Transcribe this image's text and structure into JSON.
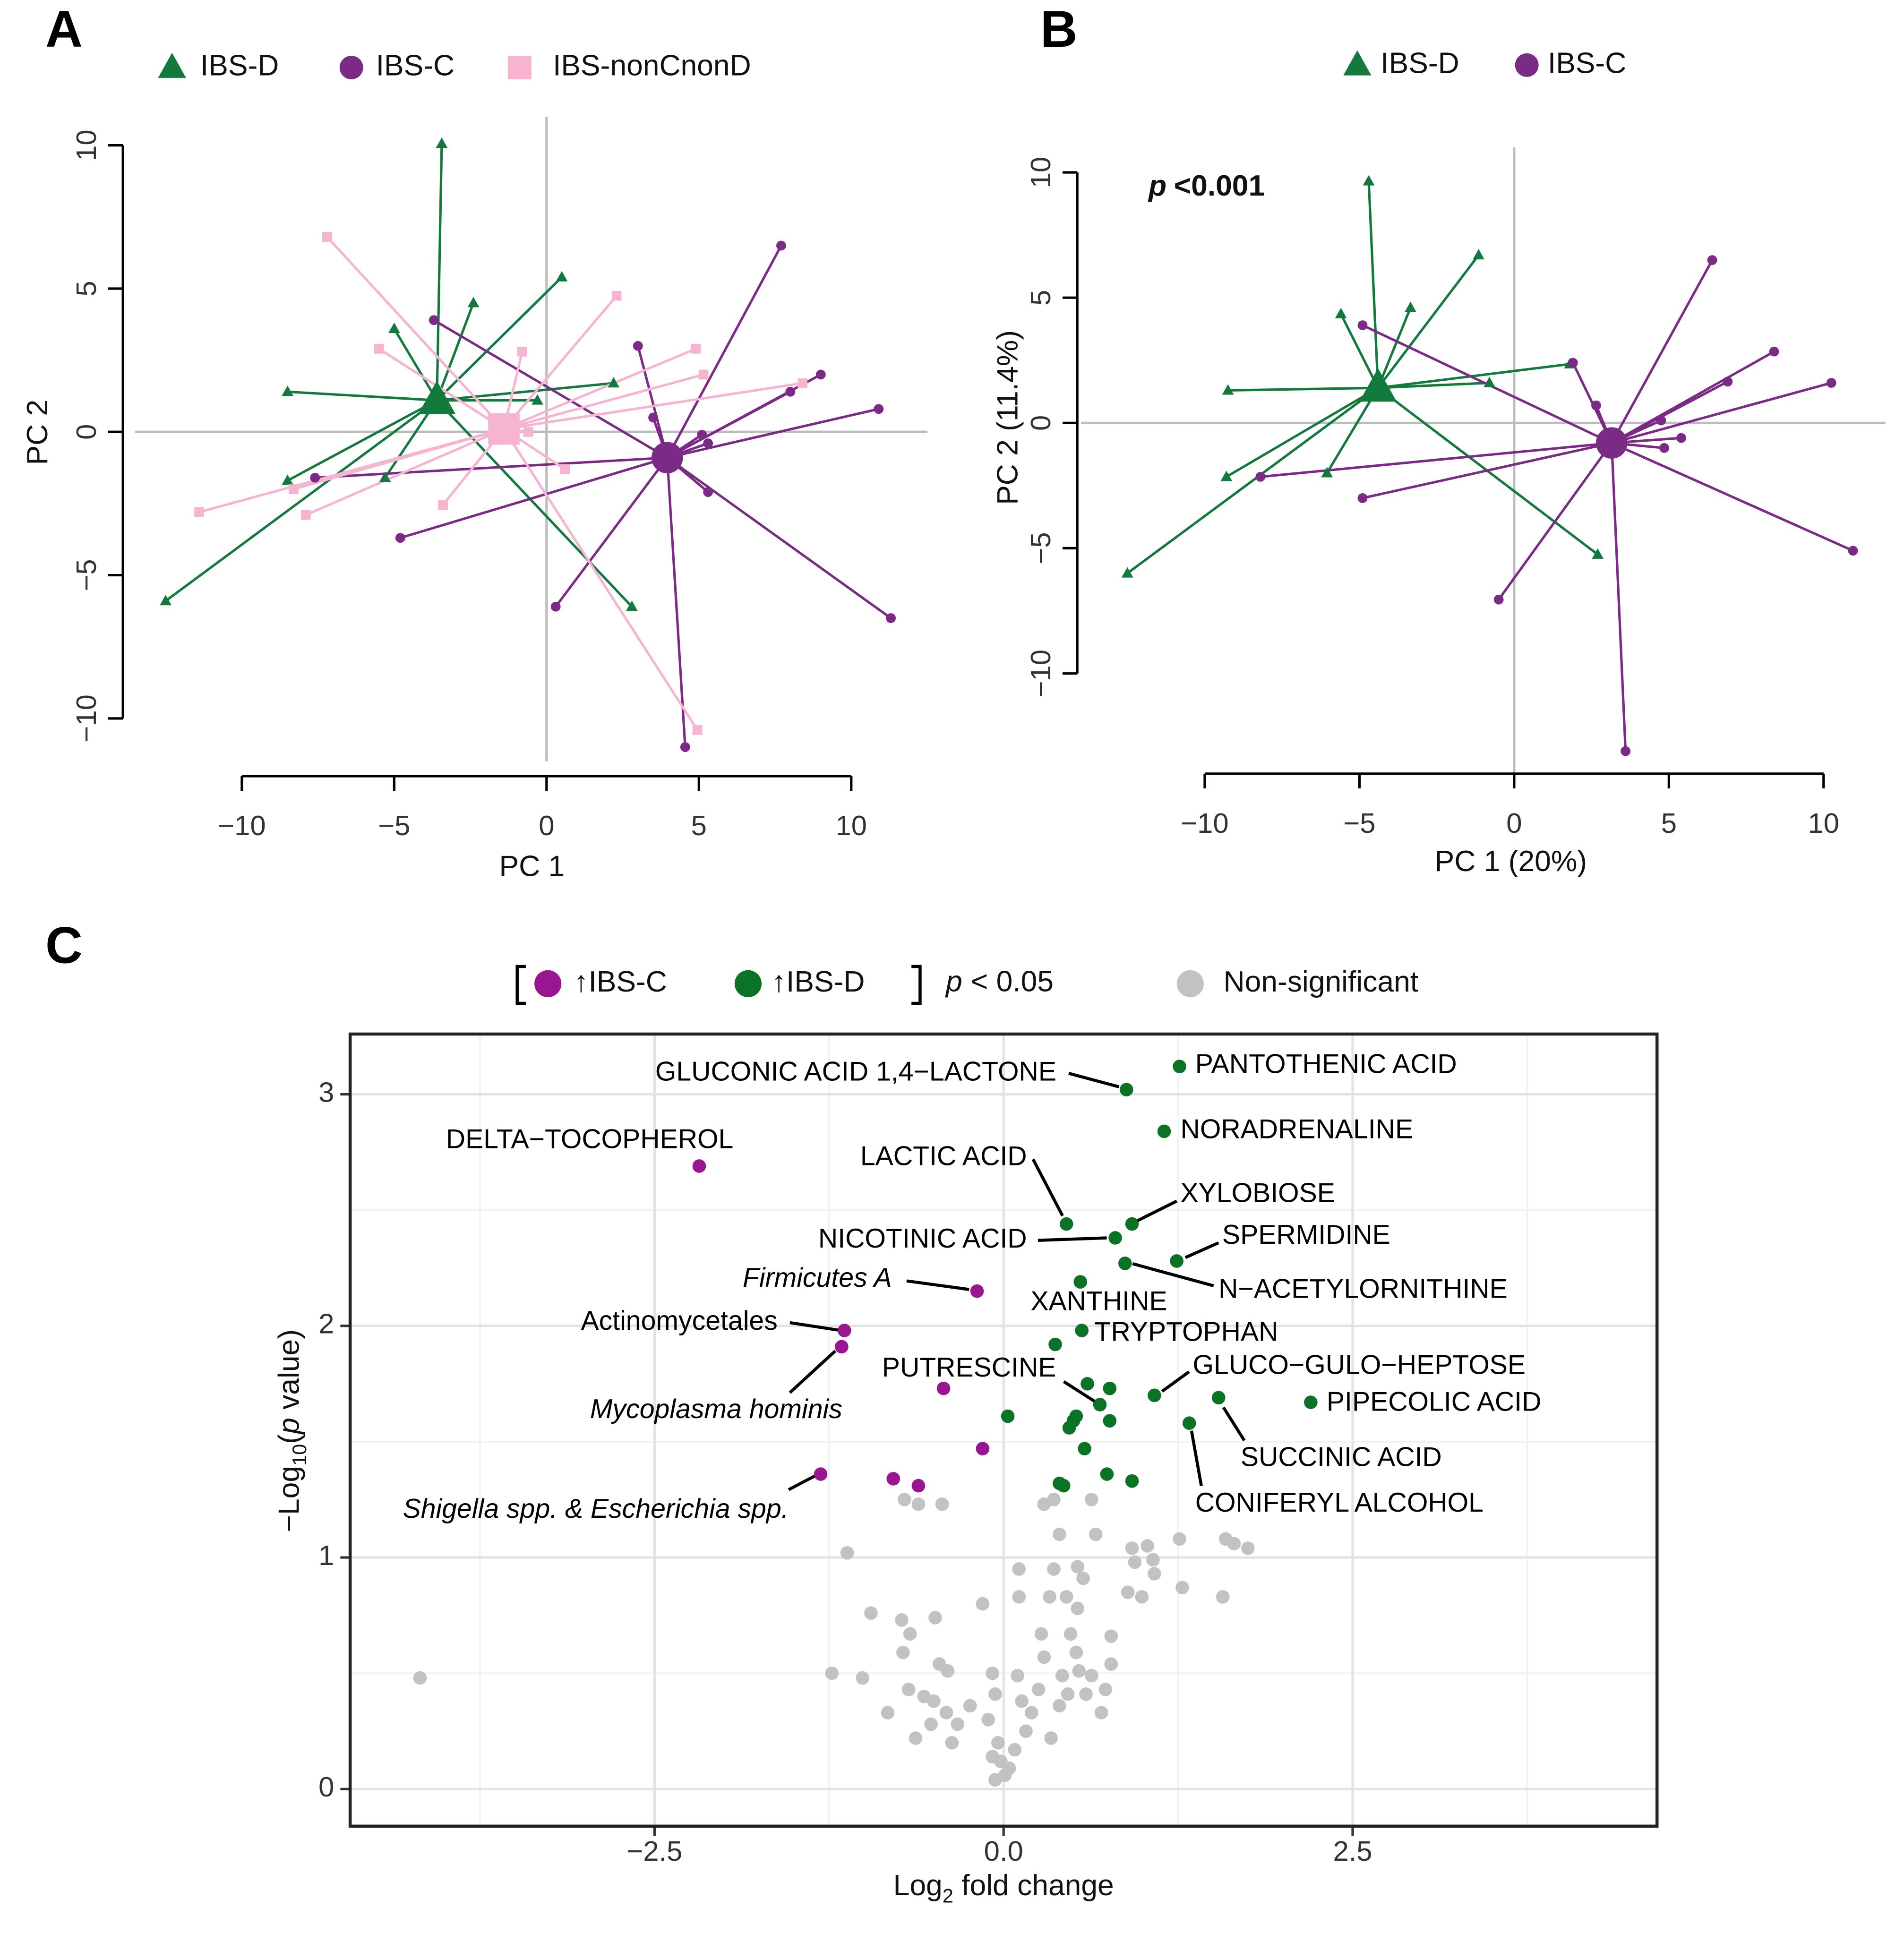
{
  "chart_data": [
    {
      "type": "pca",
      "panel": "A",
      "xlabel": "PC 1",
      "ylabel": "PC 2",
      "xlim": [
        -13.5,
        12.5
      ],
      "ylim": [
        -11.5,
        11
      ],
      "xticks": [
        {
          "value": -10,
          "label": "−10"
        },
        {
          "value": -5,
          "label": "−5"
        },
        0,
        5,
        10
      ],
      "yticks": [
        {
          "value": -10,
          "label": "−10"
        },
        {
          "value": -5,
          "label": "−5"
        },
        0,
        5,
        10
      ],
      "series": [
        {
          "name": "IBS-D",
          "color": "#137a3e",
          "marker": "triangle",
          "centroid": {
            "x": -3.6,
            "y": 1.1
          },
          "x": [
            -3.44,
            0.5,
            -2.4,
            -5.0,
            -8.5,
            2.2,
            -0.3,
            -8.5,
            -5.3,
            -12.5,
            2.8
          ],
          "y": [
            10.06,
            5.4,
            4.5,
            3.6,
            1.4,
            1.7,
            1.1,
            -1.7,
            -1.6,
            -5.9,
            -6.1
          ]
        },
        {
          "name": "IBS-C",
          "color": "#7b2a85",
          "marker": "circle",
          "centroid": {
            "x": 3.96,
            "y": -0.9
          },
          "x": [
            7.7,
            3.0,
            -3.7,
            9.0,
            8.0,
            10.9,
            5.1,
            5.3,
            -7.6,
            5.3,
            -4.8,
            0.3,
            11.3,
            4.55,
            3.5
          ],
          "y": [
            6.5,
            3.0,
            3.9,
            2.0,
            1.4,
            0.8,
            -0.1,
            -0.4,
            -1.6,
            -2.1,
            -3.7,
            -6.1,
            -6.5,
            -11.0,
            0.5
          ]
        },
        {
          "name": "IBS-nonCnonD",
          "color": "#f6b4d0",
          "marker": "square",
          "centroid": {
            "x": -1.4,
            "y": 0.1
          },
          "x": [
            -7.2,
            2.3,
            -5.5,
            4.9,
            -0.8,
            5.15,
            8.4,
            -11.4,
            -7.9,
            -8.3,
            -3.4,
            0.6,
            4.95,
            -0.6
          ],
          "y": [
            6.8,
            4.75,
            2.9,
            2.9,
            2.8,
            2.0,
            1.7,
            -2.8,
            -2.9,
            -2.0,
            -2.55,
            -1.3,
            -10.4,
            0
          ]
        }
      ]
    },
    {
      "type": "pca",
      "panel": "B",
      "xlabel": "PC 1 (20%)",
      "ylabel": "PC 2 (11.4%)",
      "annotation": {
        "symbol": "p",
        "text": "<0.001"
      },
      "xlim": [
        -14,
        12
      ],
      "ylim": [
        -14,
        11
      ],
      "xticks": [
        {
          "value": -10,
          "label": "−10"
        },
        {
          "value": -5,
          "label": "−5"
        },
        0,
        5,
        10
      ],
      "yticks": [
        {
          "value": -10,
          "label": "−10"
        },
        {
          "value": -5,
          "label": "−5"
        },
        0,
        5,
        10
      ],
      "series": [
        {
          "name": "IBS-D",
          "color": "#137a3e",
          "marker": "triangle",
          "centroid": {
            "x": -4.4,
            "y": 1.4
          },
          "x": [
            -4.7,
            -1.15,
            -3.35,
            -5.6,
            -9.25,
            1.8,
            -0.8,
            -9.3,
            -6.05,
            -12.5,
            2.7
          ],
          "y": [
            9.65,
            6.7,
            4.6,
            4.35,
            1.3,
            2.35,
            1.6,
            -2.15,
            -2.0,
            -6.0,
            -5.25
          ]
        },
        {
          "name": "IBS-C",
          "color": "#7b2a85",
          "marker": "circle",
          "centroid": {
            "x": 3.15,
            "y": -0.8
          },
          "x": [
            6.4,
            -4.9,
            1.9,
            2.65,
            8.4,
            6.9,
            10.25,
            4.75,
            5.4,
            4.85,
            -8.2,
            -4.9,
            10.95,
            -0.5,
            3.6
          ],
          "y": [
            6.5,
            3.9,
            2.4,
            0.7,
            2.85,
            1.65,
            1.6,
            0.1,
            -0.6,
            -1.0,
            -2.15,
            -3.0,
            -5.1,
            -7.05,
            -13.1
          ]
        }
      ]
    },
    {
      "type": "volcano",
      "panel": "C",
      "xlabel": [
        "Log",
        "2",
        " fold change"
      ],
      "ylabel": [
        "−Log",
        "10",
        "(",
        "p",
        " value)"
      ],
      "legend_note": {
        "symbol": "p",
        "text": "< 0.05"
      },
      "xlim": [
        -4.68,
        4.68
      ],
      "ylim": [
        -0.16,
        3.26
      ],
      "xticks": [
        {
          "value": -2.5,
          "label": "−2.5"
        },
        {
          "value": 0,
          "label": "0.0"
        },
        2.5
      ],
      "yticks": [
        0,
        1,
        2,
        3
      ],
      "x_minor_grid": [
        -3.75,
        -1.25,
        1.25,
        3.75
      ],
      "y_minor_grid": [
        0.5,
        1.5,
        2.5
      ],
      "grid": true,
      "series": [
        {
          "name": "↑IBS-C",
          "color": "#9a1690",
          "x": [
            -2.18,
            -0.19,
            -1.14,
            -1.16,
            -1.31,
            -0.43,
            -0.15,
            -0.79,
            -0.61
          ],
          "y": [
            2.69,
            2.15,
            1.98,
            1.91,
            1.36,
            1.73,
            1.47,
            1.34,
            1.31
          ],
          "labels": [
            "DELTA−TOCOPHEROL",
            "Firmicutes A",
            "Actinomycetales",
            "Mycoplasma hominis",
            "Shigella spp. & Escherichia spp.",
            null,
            null,
            null,
            null
          ]
        },
        {
          "name": "↑IBS-D",
          "color": "#0b7325",
          "x": [
            0.88,
            1.26,
            1.15,
            0.45,
            0.92,
            0.8,
            1.24,
            0.87,
            0.55,
            0.56,
            0.37,
            1.08,
            2.2,
            1.54,
            1.33,
            0.69,
            0.6,
            0.76,
            0.03,
            0.52,
            0.47,
            0.76,
            0.58,
            0.74,
            0.92,
            0.4,
            0.43,
            0.5
          ],
          "y": [
            3.02,
            3.12,
            2.84,
            2.44,
            2.44,
            2.38,
            2.28,
            2.27,
            2.19,
            1.98,
            1.92,
            1.7,
            1.67,
            1.69,
            1.58,
            1.66,
            1.75,
            1.73,
            1.61,
            1.61,
            1.56,
            1.59,
            1.47,
            1.36,
            1.33,
            1.32,
            1.31,
            1.59
          ],
          "labels": [
            "GLUCONIC ACID 1,4−LACTONE",
            "PANTOTHENIC ACID",
            "NORADRENALINE",
            "LACTIC ACID",
            "XYLOBIOSE",
            "NICOTINIC ACID",
            "SPERMIDINE",
            "N−ACETYLORNITHINE",
            "XANTHINE",
            "TRYPTOPHAN",
            null,
            "GLUCO−GULO−HEPTOSE",
            "PIPECOLIC ACID",
            "SUCCINIC ACID",
            "CONIFERYL ALCOHOL",
            "PUTRESCINE",
            null,
            null,
            null,
            null,
            null,
            null,
            null,
            null,
            null,
            null,
            null,
            null
          ]
        },
        {
          "name": "Non-significant",
          "color": "#c2c2c2",
          "x": [
            -4.18,
            -1.12,
            -0.71,
            -0.61,
            -0.44,
            -0.95,
            -0.73,
            -0.67,
            -0.72,
            -0.49,
            -1.23,
            -1.01,
            -0.83,
            -0.68,
            -0.57,
            -0.46,
            -0.4,
            -0.5,
            -0.63,
            -0.52,
            -0.41,
            -0.33,
            -0.24,
            -0.37,
            -0.15,
            -0.08,
            -0.06,
            -0.11,
            -0.04,
            -0.02,
            0.01,
            -0.06,
            0.04,
            -0.08,
            0.08,
            0.11,
            0.11,
            0.1,
            0.13,
            0.2,
            0.16,
            0.25,
            0.29,
            0.27,
            0.33,
            0.36,
            0.4,
            0.29,
            0.36,
            0.45,
            0.48,
            0.52,
            0.54,
            0.42,
            0.46,
            0.4,
            0.34,
            0.59,
            0.63,
            0.53,
            0.57,
            0.53,
            0.63,
            0.66,
            0.77,
            0.77,
            0.73,
            0.7,
            0.92,
            0.89,
            0.99,
            1.03,
            0.94,
            1.08,
            1.26,
            1.28,
            1.59,
            1.57,
            1.65,
            1.75,
            1.07
          ],
          "y": [
            0.48,
            1.02,
            1.25,
            1.23,
            1.23,
            0.76,
            0.73,
            0.67,
            0.59,
            0.74,
            0.5,
            0.48,
            0.33,
            0.43,
            0.4,
            0.54,
            0.51,
            0.38,
            0.22,
            0.28,
            0.33,
            0.28,
            0.36,
            0.2,
            0.8,
            0.5,
            0.41,
            0.3,
            0.2,
            0.12,
            0.06,
            0.04,
            0.09,
            0.14,
            0.17,
            0.95,
            0.83,
            0.49,
            0.38,
            0.33,
            0.25,
            0.43,
            0.57,
            0.67,
            0.83,
            0.95,
            1.1,
            1.23,
            1.25,
            0.83,
            0.67,
            0.59,
            0.51,
            0.49,
            0.41,
            0.36,
            0.22,
            0.41,
            0.49,
            0.96,
            0.91,
            0.78,
            1.25,
            1.1,
            0.66,
            0.54,
            0.43,
            0.33,
            1.04,
            0.85,
            0.83,
            1.05,
            0.98,
            0.93,
            1.08,
            0.87,
            1.08,
            0.83,
            1.06,
            1.04,
            0.99
          ]
        }
      ]
    }
  ]
}
